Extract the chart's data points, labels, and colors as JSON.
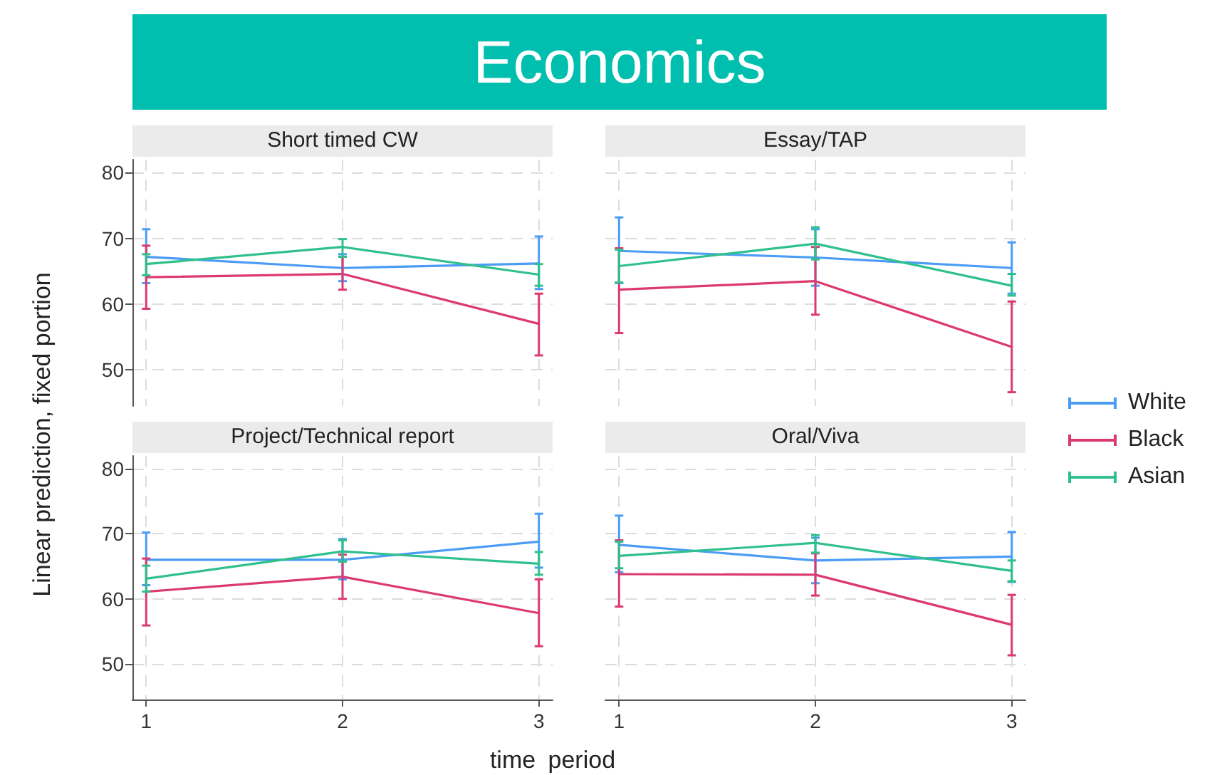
{
  "chart_data": [
    {
      "type": "line",
      "title": "Short timed CW",
      "x": [
        1,
        2,
        3
      ],
      "xlim": [
        0.93,
        3.07
      ],
      "xticks": [
        1,
        2,
        3
      ],
      "ylim": [
        44.5,
        82
      ],
      "yticks": [
        50,
        60,
        70,
        80
      ],
      "grid": true,
      "marker": "none",
      "tick_labels": "y",
      "legend": "right",
      "series": [
        {
          "name": "White",
          "color": "#4a9cf5",
          "values": [
            67.2,
            65.5,
            66.2
          ],
          "errors": [
            [
              63.2,
              71.4
            ],
            [
              63.5,
              67.6
            ],
            [
              62.3,
              70.3
            ]
          ]
        },
        {
          "name": "Black",
          "color": "#dc3a6e",
          "values": [
            64.1,
            64.6,
            57.0
          ],
          "errors": [
            [
              59.3,
              68.9
            ],
            [
              62.2,
              67.2
            ],
            [
              52.2,
              61.6
            ]
          ]
        },
        {
          "name": "Asian",
          "color": "#2fc08c",
          "values": [
            66.1,
            68.7,
            64.5
          ],
          "errors": [
            [
              64.4,
              67.6
            ],
            [
              67.2,
              69.9
            ],
            [
              62.8,
              66.1
            ]
          ]
        }
      ]
    },
    {
      "type": "line",
      "title": "Essay/TAP",
      "x": [
        1,
        2,
        3
      ],
      "xlim": [
        0.93,
        3.07
      ],
      "xticks": [
        1,
        2,
        3
      ],
      "ylim": [
        44.5,
        82
      ],
      "yticks": [
        50,
        60,
        70,
        80
      ],
      "grid": true,
      "marker": "none",
      "tick_labels": false,
      "series": [
        {
          "color": "#4a9cf5",
          "values": [
            68.1,
            67.1,
            65.5
          ],
          "errors": [
            [
              63.2,
              73.2
            ],
            [
              62.8,
              71.4
            ],
            [
              61.6,
              69.4
            ]
          ]
        },
        {
          "color": "#dc3a6e",
          "values": [
            62.2,
            63.5,
            53.5
          ],
          "errors": [
            [
              55.6,
              68.5
            ],
            [
              58.4,
              68.7
            ],
            [
              46.6,
              60.4
            ]
          ]
        },
        {
          "color": "#2fc08c",
          "values": [
            65.8,
            69.2,
            62.8
          ],
          "errors": [
            [
              63.3,
              68.3
            ],
            [
              66.8,
              71.7
            ],
            [
              61.3,
              64.6
            ]
          ]
        }
      ]
    },
    {
      "type": "line",
      "title": "Project/Technical report",
      "x": [
        1,
        2,
        3
      ],
      "xlim": [
        0.93,
        3.07
      ],
      "xticks": [
        1,
        2,
        3
      ],
      "ylim": [
        44.5,
        82
      ],
      "yticks": [
        50,
        60,
        70,
        80
      ],
      "grid": true,
      "marker": "none",
      "series": [
        {
          "color": "#4a9cf5",
          "values": [
            66.0,
            66.0,
            68.8
          ],
          "errors": [
            [
              62.1,
              70.2
            ],
            [
              63.0,
              69.2
            ],
            [
              64.8,
              73.1
            ]
          ]
        },
        {
          "color": "#dc3a6e",
          "values": [
            61.1,
            63.4,
            57.8
          ],
          "errors": [
            [
              55.9,
              66.2
            ],
            [
              60.0,
              66.8
            ],
            [
              52.7,
              63.0
            ]
          ]
        },
        {
          "color": "#2fc08c",
          "values": [
            63.1,
            67.3,
            65.4
          ],
          "errors": [
            [
              61.1,
              65.1
            ],
            [
              65.7,
              69.0
            ],
            [
              63.7,
              67.2
            ]
          ]
        }
      ]
    },
    {
      "type": "line",
      "title": "Oral/Viva",
      "x": [
        1,
        2,
        3
      ],
      "xlim": [
        0.93,
        3.07
      ],
      "xticks": [
        1,
        2,
        3
      ],
      "ylim": [
        44.5,
        82
      ],
      "yticks": [
        50,
        60,
        70,
        80
      ],
      "grid": true,
      "marker": "none",
      "tick_labels": "x",
      "series": [
        {
          "color": "#4a9cf5",
          "values": [
            68.3,
            65.9,
            66.5
          ],
          "errors": [
            [
              64.1,
              72.8
            ],
            [
              62.4,
              69.4
            ],
            [
              62.6,
              70.3
            ]
          ]
        },
        {
          "color": "#dc3a6e",
          "values": [
            63.8,
            63.7,
            56.0
          ],
          "errors": [
            [
              58.8,
              69.0
            ],
            [
              60.5,
              67.0
            ],
            [
              51.3,
              60.6
            ]
          ]
        },
        {
          "color": "#2fc08c",
          "values": [
            66.6,
            68.6,
            64.3
          ],
          "errors": [
            [
              64.7,
              68.8
            ],
            [
              67.1,
              69.8
            ],
            [
              62.7,
              65.9
            ]
          ]
        }
      ]
    },
    {
      "type": "other",
      "title": "Economics",
      "xlabel": "time period",
      "ylabel": "Linear prediction, fixed portion"
    }
  ]
}
